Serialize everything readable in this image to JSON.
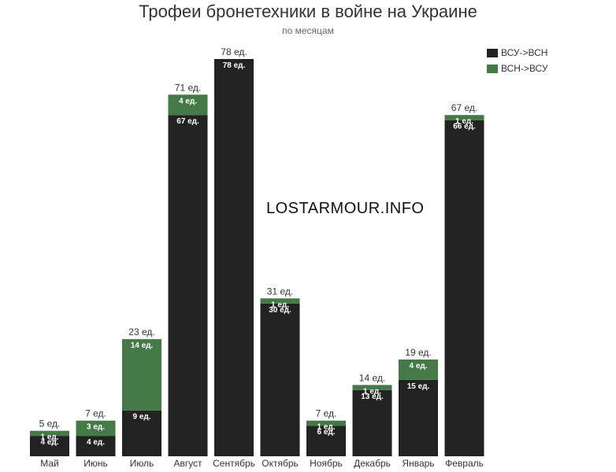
{
  "chart_data": {
    "type": "bar",
    "stacked": true,
    "title": "Трофеи бронетехники в войне на Украине",
    "subtitle": "по месяцам",
    "watermark": "LOSTARMOUR.INFO",
    "categories": [
      "Май",
      "Июнь",
      "Июль",
      "Август",
      "Сентябрь",
      "Октябрь",
      "Ноябрь",
      "Декабрь",
      "Январь",
      "Февраль"
    ],
    "series": [
      {
        "name": "ВСУ->ВСН",
        "color": "#222222",
        "values": [
          4,
          4,
          9,
          67,
          78,
          30,
          6,
          13,
          15,
          66
        ],
        "labels": [
          "4 ед.",
          "4 ед.",
          "9 ед.",
          "67 ед.",
          "78 ед.",
          "30 ед.",
          "6 ед.",
          "13 ед.",
          "15 ед.",
          "66 ед."
        ]
      },
      {
        "name": "ВСН->ВСУ",
        "color": "#457a48",
        "values": [
          1,
          3,
          14,
          4,
          0,
          1,
          1,
          1,
          4,
          1
        ],
        "labels": [
          "1 ед.",
          "3 ед.",
          "14 ед.",
          "4 ед.",
          "",
          "1 ед.",
          "1 ед.",
          "1 ед.",
          "4 ед.",
          "1 ед."
        ]
      }
    ],
    "totals": [
      5,
      7,
      23,
      71,
      78,
      31,
      7,
      14,
      19,
      67
    ],
    "total_labels": [
      "5 ед.",
      "7 ед.",
      "23 ед.",
      "71 ед.",
      "78 ед.",
      "31 ед.",
      "7 ед.",
      "14 ед.",
      "19 ед.",
      "67 ед."
    ],
    "xlabel": "",
    "ylabel": "",
    "ylim": [
      0,
      78
    ],
    "grid": false,
    "legend_position": "top-right"
  }
}
